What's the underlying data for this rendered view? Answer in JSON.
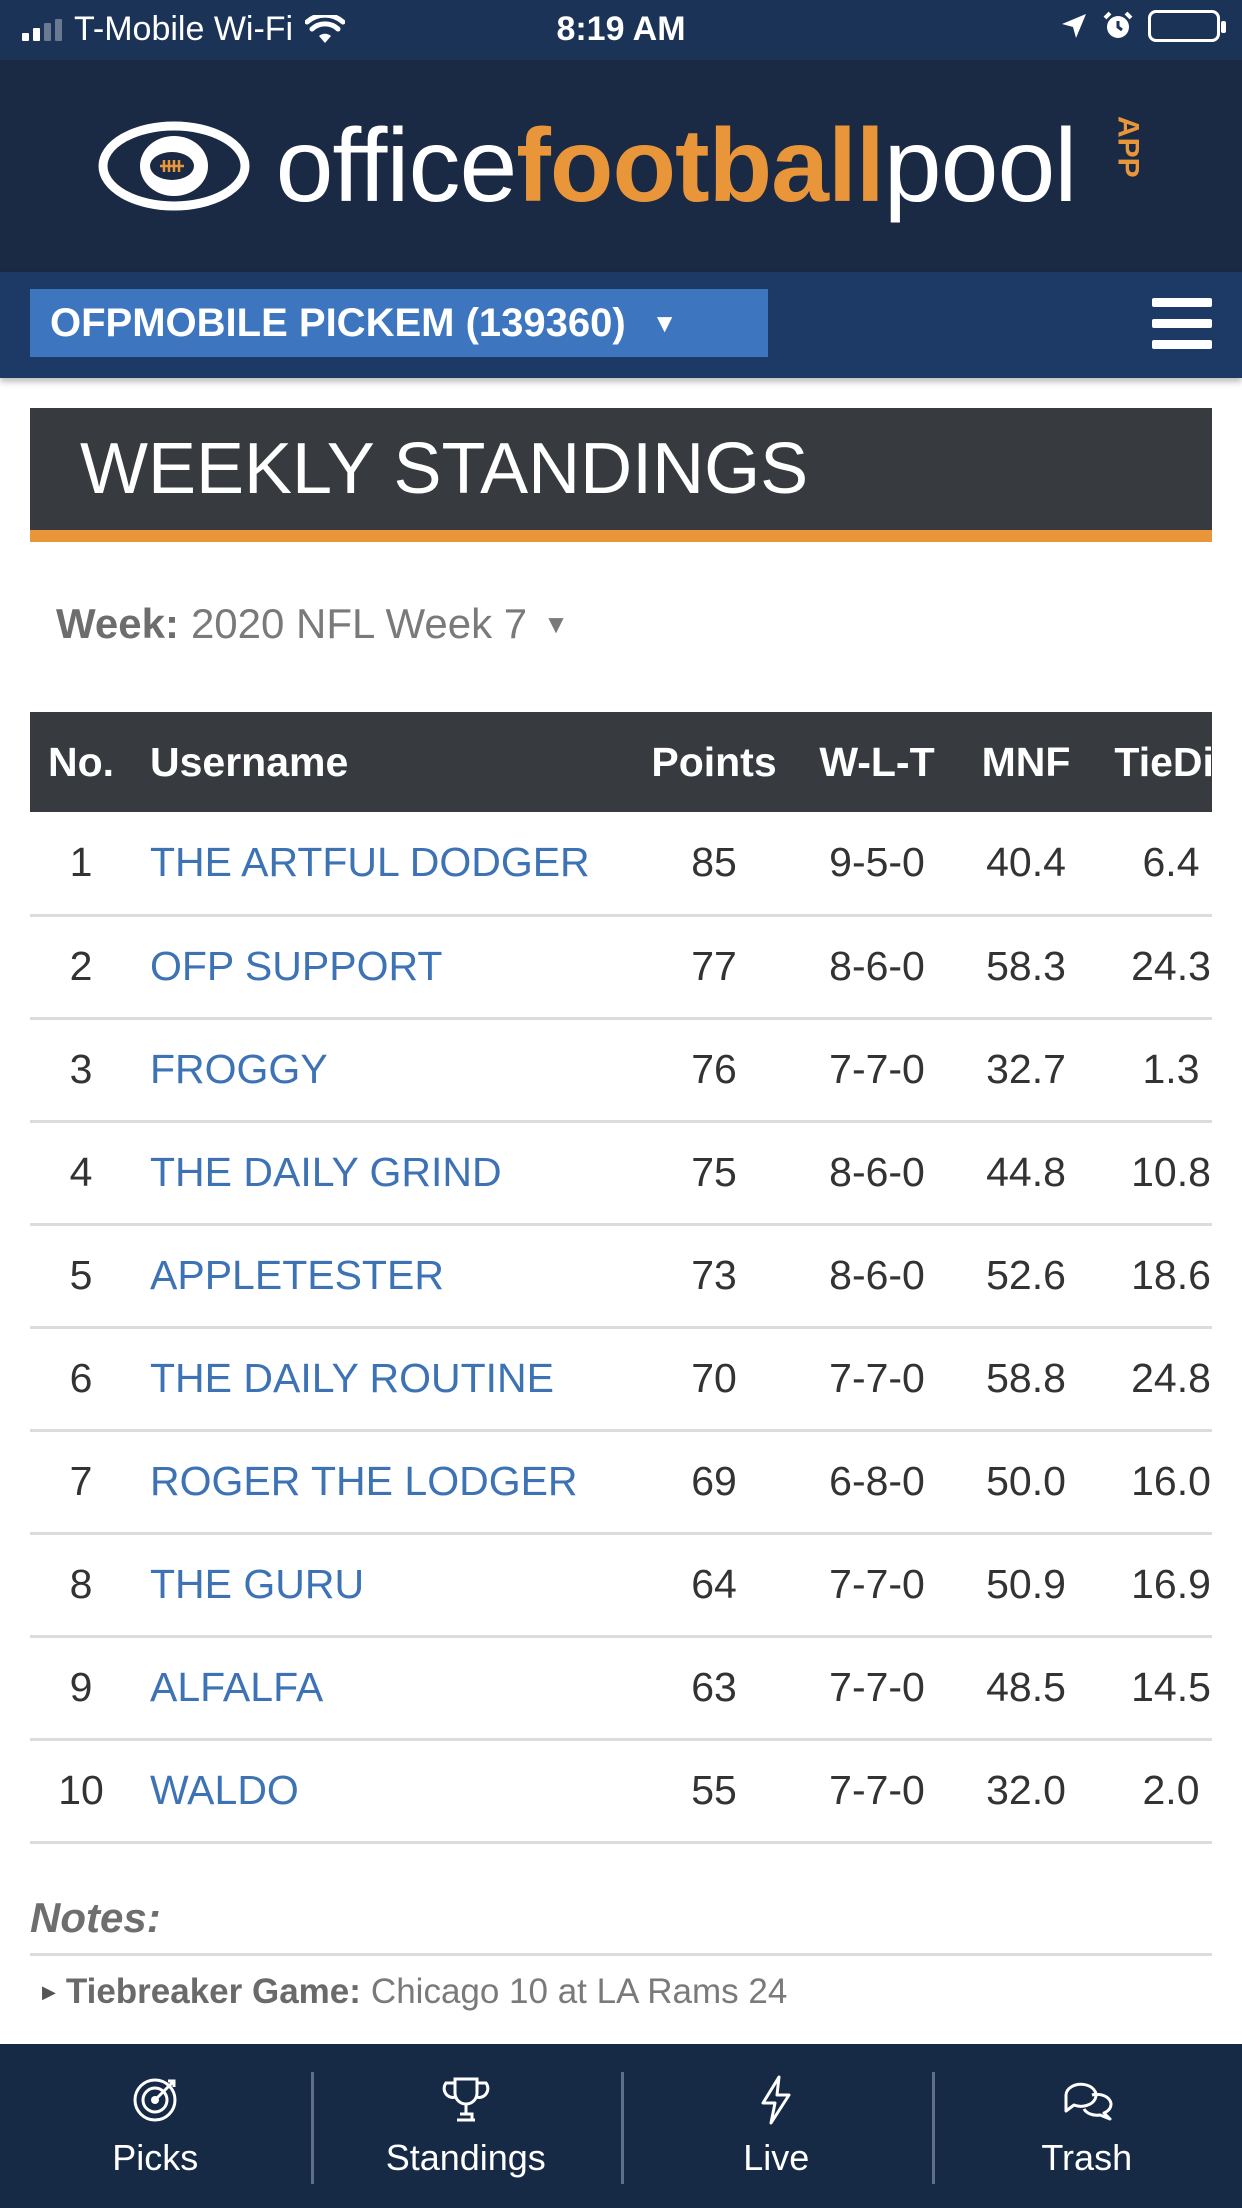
{
  "status_bar": {
    "carrier": "T-Mobile Wi-Fi",
    "time": "8:19 AM"
  },
  "brand": {
    "office": "office",
    "football": "football",
    "pool": "pool",
    "app": "APP",
    "accent_color": "#e9963a"
  },
  "pool_selector": {
    "label": "OFPMOBILE PICKEM (139360)"
  },
  "page": {
    "title": "WEEKLY STANDINGS"
  },
  "week_filter": {
    "label": "Week:",
    "value": "2020 NFL Week 7"
  },
  "standings": {
    "columns": [
      "No.",
      "Username",
      "Points",
      "W-L-T",
      "MNF",
      "TieDif"
    ],
    "rows": [
      {
        "no": "1",
        "username": "THE ARTFUL DODGER",
        "points": "85",
        "wlt": "9-5-0",
        "mnf": "40.4",
        "tiedif": "6.4"
      },
      {
        "no": "2",
        "username": "OFP SUPPORT",
        "points": "77",
        "wlt": "8-6-0",
        "mnf": "58.3",
        "tiedif": "24.3"
      },
      {
        "no": "3",
        "username": "FROGGY",
        "points": "76",
        "wlt": "7-7-0",
        "mnf": "32.7",
        "tiedif": "1.3"
      },
      {
        "no": "4",
        "username": "THE DAILY GRIND",
        "points": "75",
        "wlt": "8-6-0",
        "mnf": "44.8",
        "tiedif": "10.8"
      },
      {
        "no": "5",
        "username": "APPLETESTER",
        "points": "73",
        "wlt": "8-6-0",
        "mnf": "52.6",
        "tiedif": "18.6"
      },
      {
        "no": "6",
        "username": "THE DAILY ROUTINE",
        "points": "70",
        "wlt": "7-7-0",
        "mnf": "58.8",
        "tiedif": "24.8"
      },
      {
        "no": "7",
        "username": "ROGER THE LODGER",
        "points": "69",
        "wlt": "6-8-0",
        "mnf": "50.0",
        "tiedif": "16.0"
      },
      {
        "no": "8",
        "username": "THE GURU",
        "points": "64",
        "wlt": "7-7-0",
        "mnf": "50.9",
        "tiedif": "16.9"
      },
      {
        "no": "9",
        "username": "ALFALFA",
        "points": "63",
        "wlt": "7-7-0",
        "mnf": "48.5",
        "tiedif": "14.5"
      },
      {
        "no": "10",
        "username": "WALDO",
        "points": "55",
        "wlt": "7-7-0",
        "mnf": "32.0",
        "tiedif": "2.0"
      }
    ]
  },
  "notes": {
    "title": "Notes:",
    "tiebreaker_label": "Tiebreaker Game:",
    "tiebreaker_value": "Chicago 10 at LA Rams 24"
  },
  "tab_bar": {
    "tabs": [
      {
        "label": "Picks",
        "icon": "target-icon"
      },
      {
        "label": "Standings",
        "icon": "trophy-icon"
      },
      {
        "label": "Live",
        "icon": "lightning-icon"
      },
      {
        "label": "Trash",
        "icon": "chat-bubbles-icon"
      }
    ]
  }
}
